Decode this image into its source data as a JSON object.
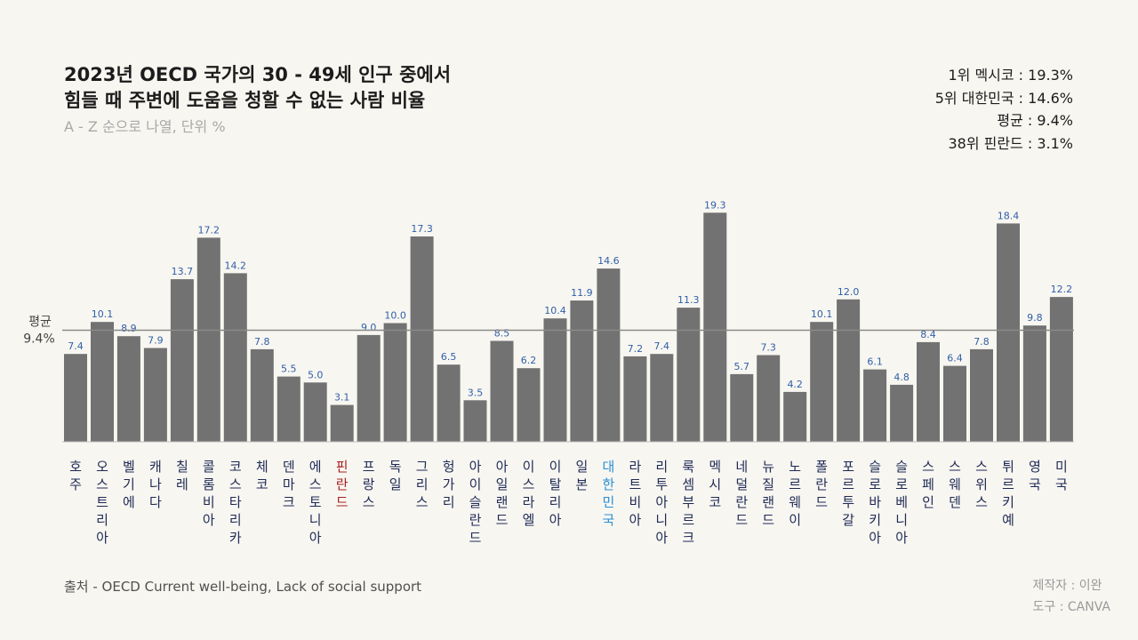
{
  "header": {
    "title_line1": "2023년 OECD 국가의 30 - 49세 인구 중에서",
    "title_line2": "힘들 때 주변에 도움을 청할 수 없는 사람 비율",
    "subtitle": "A - Z 순으로 나열, 단위 %"
  },
  "stats": {
    "first": "1위 멕시코 : 19.3%",
    "korea": "5위 대한민국 : 14.6%",
    "average": "평균 : 9.4%",
    "last": "38위 핀란드 : 3.1%"
  },
  "footer": {
    "source": "출처 - OECD Current well-being, Lack of social support",
    "maker": "제작자 : 이완",
    "tool": "도구 : CANVA"
  },
  "colors": {
    "bar": "#727272",
    "value_label": "#2f5fa8",
    "country_default": "#1e2a55",
    "country_korea": "#2a8fd6",
    "country_finland": "#a82020",
    "average_line": "#8a8a8a"
  },
  "chart_data": {
    "type": "bar",
    "title": "2023년 OECD 국가의 30 - 49세 인구 중에서 힘들 때 주변에 도움을 청할 수 없는 사람 비율",
    "subtitle": "A - Z 순으로 나열, 단위 %",
    "xlabel": "",
    "ylabel": "",
    "ylim": [
      0,
      20
    ],
    "average": 9.4,
    "average_label_line1": "평균",
    "average_label_line2": "9.4%",
    "highlight": {
      "대한민국": "korea",
      "핀란드": "finland"
    },
    "categories": [
      "호주",
      "오스트리아",
      "벨기에",
      "캐나다",
      "칠레",
      "콜롬비아",
      "코스타리카",
      "체코",
      "덴마크",
      "에스토니아",
      "핀란드",
      "프랑스",
      "독일",
      "그리스",
      "헝가리",
      "아이슬란드",
      "아일랜드",
      "이스라엘",
      "이탈리아",
      "일본",
      "대한민국",
      "라트비아",
      "리투아니아",
      "룩셈부르크",
      "멕시코",
      "네덜란드",
      "뉴질랜드",
      "노르웨이",
      "폴란드",
      "포르투갈",
      "슬로바키아",
      "슬로베니아",
      "스페인",
      "스웨덴",
      "스위스",
      "튀르키예",
      "영국",
      "미국"
    ],
    "values": [
      7.4,
      10.1,
      8.9,
      7.9,
      13.7,
      17.2,
      14.2,
      7.8,
      5.5,
      5.0,
      3.1,
      9.0,
      10.0,
      17.3,
      6.5,
      3.5,
      8.5,
      6.2,
      10.4,
      11.9,
      14.6,
      7.2,
      7.4,
      11.3,
      19.3,
      5.7,
      7.3,
      4.2,
      10.1,
      12.0,
      6.1,
      4.8,
      8.4,
      6.4,
      7.8,
      18.4,
      9.8,
      12.2
    ],
    "value_labels": [
      "7.4",
      "10.1",
      "8.9",
      "7.9",
      "13.7",
      "17.2",
      "14.2",
      "7.8",
      "5.5",
      "5.0",
      "3.1",
      "9.0",
      "10.0",
      "17.3",
      "6.5",
      "3.5",
      "8.5",
      "6.2",
      "10.4",
      "11.9",
      "14.6",
      "7.2",
      "7.4",
      "11.3",
      "19.3",
      "5.7",
      "7.3",
      "4.2",
      "10.1",
      "12.0",
      "6.1",
      "4.8",
      "8.4",
      "6.4",
      "7.8",
      "18.4",
      "9.8",
      "12.2"
    ]
  }
}
